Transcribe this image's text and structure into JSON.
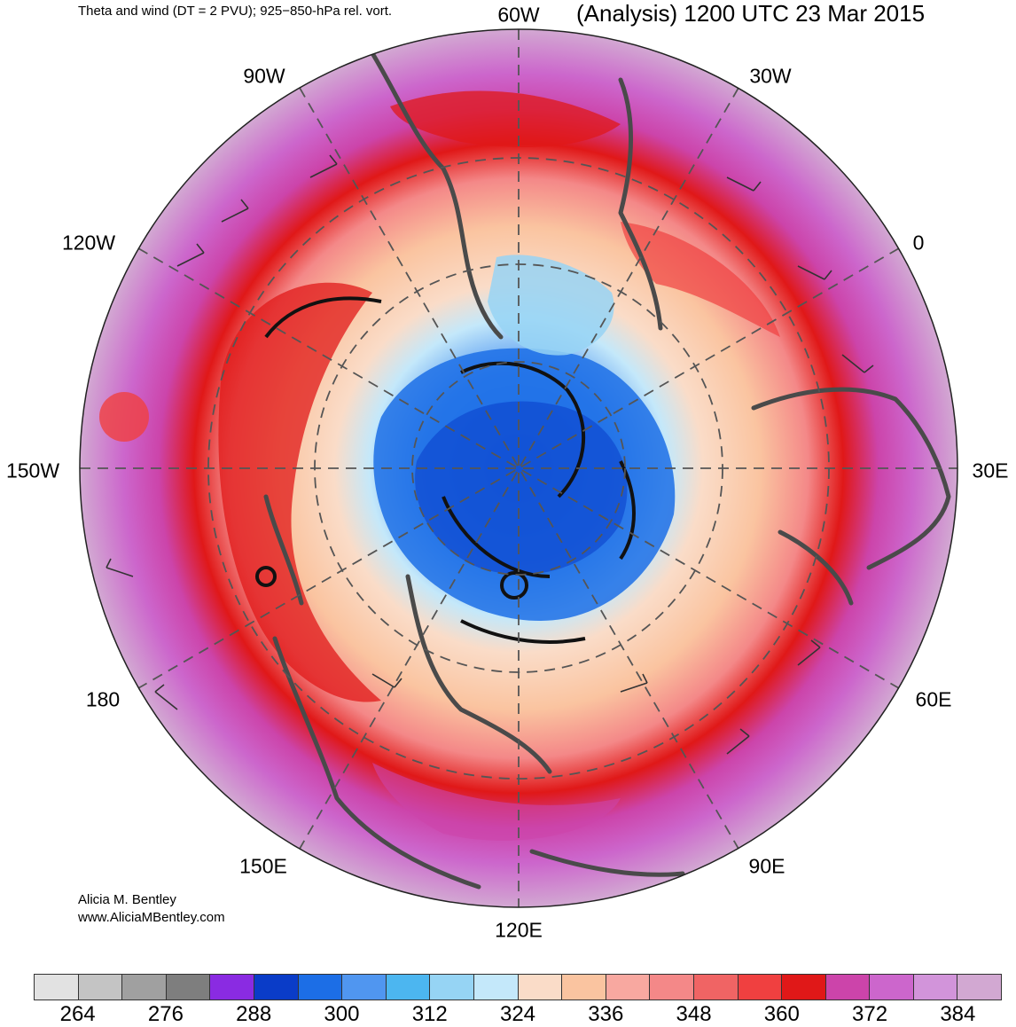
{
  "header": {
    "subtitle": "Theta and wind (DT = 2 PVU); 925−850-hPa rel. vort.",
    "title": "(Analysis) 1200 UTC 23 Mar 2015"
  },
  "map": {
    "projection": "south-polar-stereographic",
    "longitude_labels": [
      "60W",
      "30W",
      "0",
      "30E",
      "60E",
      "90E",
      "120E",
      "150E",
      "180",
      "150W",
      "120W",
      "90W"
    ]
  },
  "credits": {
    "author": "Alicia M. Bentley",
    "website": "www.AliciaMBentley.com"
  },
  "colorbar": {
    "colors": [
      "#e2e2e2",
      "#c4c4c4",
      "#a0a0a0",
      "#7e7e7e",
      "#8a2be2",
      "#0a3cc8",
      "#1c6ee6",
      "#5096f0",
      "#4cb6f0",
      "#96d4f4",
      "#c4e8fa",
      "#fadcc8",
      "#fac4a0",
      "#f8a8a0",
      "#f48888",
      "#f06464",
      "#f04040",
      "#e01818",
      "#cc44aa",
      "#cc66cc",
      "#d294da",
      "#d2a8d2"
    ],
    "tick_labels": [
      "264",
      "276",
      "288",
      "300",
      "312",
      "324",
      "336",
      "348",
      "360",
      "372",
      "384"
    ]
  }
}
